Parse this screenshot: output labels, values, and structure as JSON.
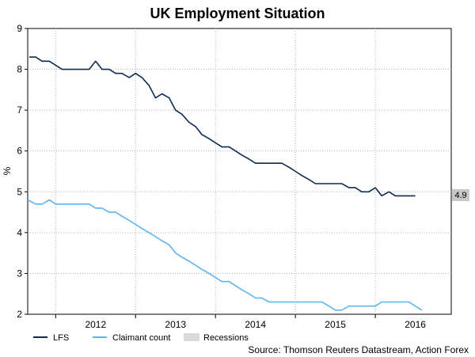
{
  "chart_data": {
    "type": "line",
    "title": "UK Employment Situation",
    "ylabel": "%",
    "xlabel": "",
    "ylim": [
      2,
      9
    ],
    "yticks": [
      2,
      3,
      4,
      5,
      6,
      7,
      8,
      9
    ],
    "xlim": [
      2011.65,
      2016.95
    ],
    "xtick_labels": [
      "2012",
      "2013",
      "2014",
      "2015",
      "2016"
    ],
    "grid": true,
    "legend_position": "bottom-left",
    "last_value_label": "4.9",
    "series": [
      {
        "name": "LFS",
        "color": "#0d2b52",
        "x": [
          2011.67,
          2011.75,
          2011.83,
          2011.92,
          2012.0,
          2012.08,
          2012.17,
          2012.25,
          2012.33,
          2012.42,
          2012.5,
          2012.58,
          2012.67,
          2012.75,
          2012.83,
          2012.92,
          2013.0,
          2013.08,
          2013.17,
          2013.25,
          2013.33,
          2013.42,
          2013.5,
          2013.58,
          2013.67,
          2013.75,
          2013.83,
          2013.92,
          2014.0,
          2014.08,
          2014.17,
          2014.25,
          2014.33,
          2014.42,
          2014.5,
          2014.58,
          2014.67,
          2014.75,
          2014.83,
          2014.92,
          2015.0,
          2015.08,
          2015.17,
          2015.25,
          2015.33,
          2015.42,
          2015.5,
          2015.58,
          2015.67,
          2015.75,
          2015.83,
          2015.92,
          2016.0,
          2016.08,
          2016.17,
          2016.25,
          2016.33,
          2016.42,
          2016.5
        ],
        "values": [
          8.3,
          8.3,
          8.2,
          8.2,
          8.1,
          8.0,
          8.0,
          8.0,
          8.0,
          8.0,
          8.2,
          8.0,
          8.0,
          7.9,
          7.9,
          7.8,
          7.9,
          7.8,
          7.6,
          7.3,
          7.4,
          7.3,
          7.0,
          6.9,
          6.7,
          6.6,
          6.4,
          6.3,
          6.2,
          6.1,
          6.1,
          6.0,
          5.9,
          5.8,
          5.7,
          5.7,
          5.7,
          5.7,
          5.7,
          5.6,
          5.5,
          5.4,
          5.3,
          5.2,
          5.2,
          5.2,
          5.2,
          5.2,
          5.1,
          5.1,
          5.0,
          5.0,
          5.1,
          4.9,
          5.0,
          4.9,
          4.9,
          4.9,
          4.9
        ]
      },
      {
        "name": "Claimant count",
        "color": "#5bb4ec",
        "x": [
          2011.65,
          2011.75,
          2011.83,
          2011.92,
          2012.0,
          2012.08,
          2012.17,
          2012.25,
          2012.33,
          2012.42,
          2012.5,
          2012.58,
          2012.67,
          2012.75,
          2012.83,
          2012.92,
          2013.0,
          2013.08,
          2013.17,
          2013.25,
          2013.33,
          2013.42,
          2013.5,
          2013.58,
          2013.67,
          2013.75,
          2013.83,
          2013.92,
          2014.0,
          2014.08,
          2014.17,
          2014.25,
          2014.33,
          2014.42,
          2014.5,
          2014.58,
          2014.67,
          2014.75,
          2014.83,
          2014.92,
          2015.0,
          2015.08,
          2015.17,
          2015.25,
          2015.33,
          2015.42,
          2015.5,
          2015.58,
          2015.67,
          2015.75,
          2015.83,
          2015.92,
          2016.0,
          2016.08,
          2016.17,
          2016.25,
          2016.33,
          2016.42,
          2016.5,
          2016.58
        ],
        "values": [
          4.8,
          4.7,
          4.7,
          4.8,
          4.7,
          4.7,
          4.7,
          4.7,
          4.7,
          4.7,
          4.6,
          4.6,
          4.5,
          4.5,
          4.4,
          4.3,
          4.2,
          4.1,
          4.0,
          3.9,
          3.8,
          3.7,
          3.5,
          3.4,
          3.3,
          3.2,
          3.1,
          3.0,
          2.9,
          2.8,
          2.8,
          2.7,
          2.6,
          2.5,
          2.4,
          2.4,
          2.3,
          2.3,
          2.3,
          2.3,
          2.3,
          2.3,
          2.3,
          2.3,
          2.3,
          2.2,
          2.1,
          2.1,
          2.2,
          2.2,
          2.2,
          2.2,
          2.2,
          2.3,
          2.3,
          2.3,
          2.3,
          2.3,
          2.2,
          2.1
        ]
      }
    ],
    "legend": [
      {
        "label": "LFS",
        "color": "#0d2b52",
        "kind": "line"
      },
      {
        "label": "Claimant count",
        "color": "#5bb4ec",
        "kind": "line"
      },
      {
        "label": "Recessions",
        "color": "#d9d9d9",
        "kind": "box"
      }
    ],
    "source": "Source: Thomson Reuters Datastream, Action Forex"
  }
}
